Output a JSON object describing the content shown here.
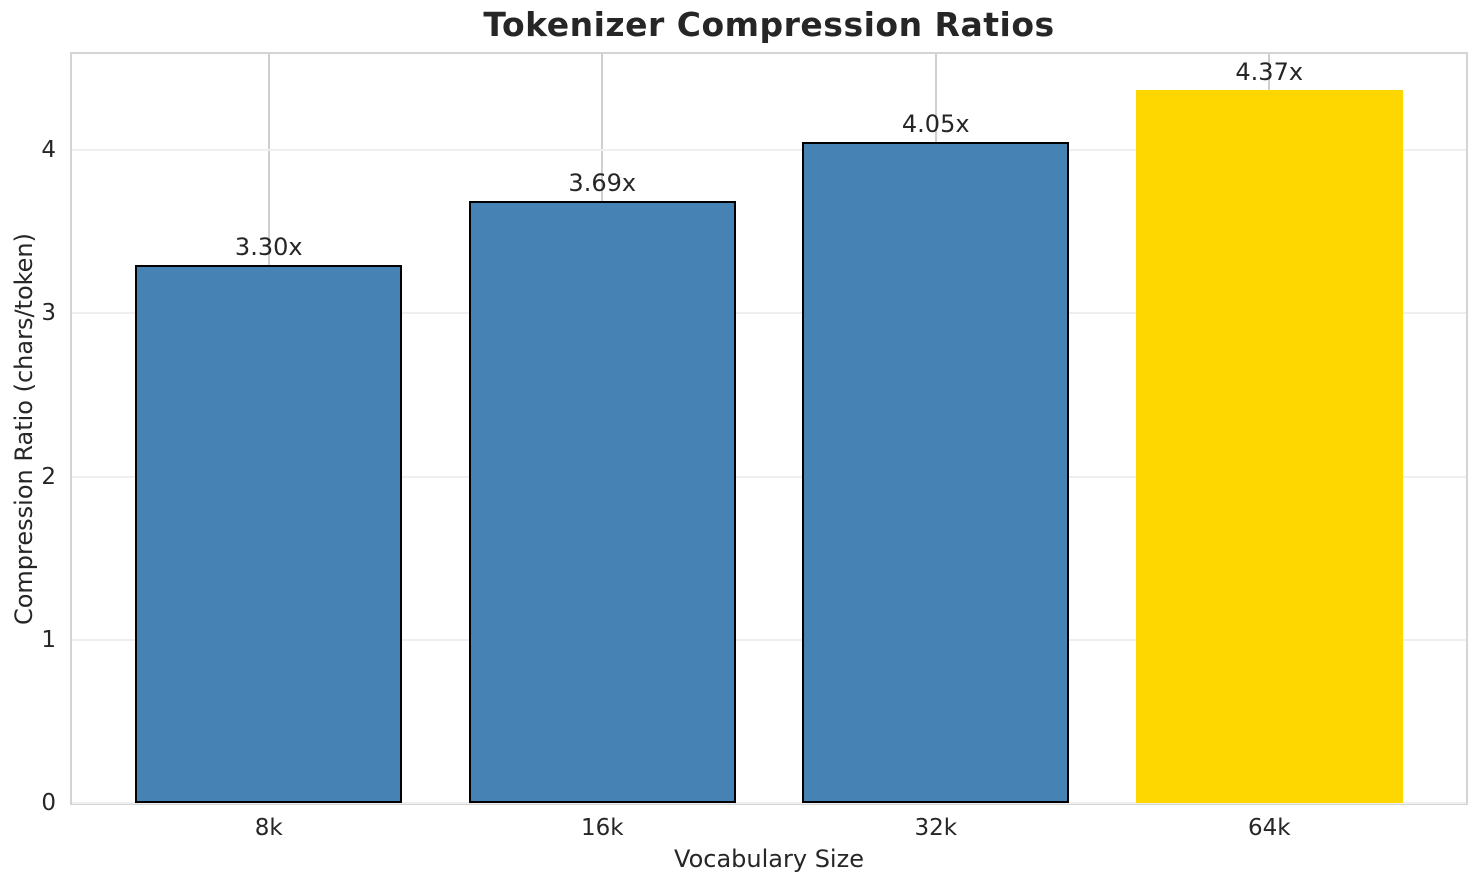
{
  "chart_data": {
    "type": "bar",
    "title": "Tokenizer Compression Ratios",
    "xlabel": "Vocabulary Size",
    "ylabel": "Compression Ratio (chars/token)",
    "categories": [
      "8k",
      "16k",
      "32k",
      "64k"
    ],
    "values": [
      3.3,
      3.69,
      4.05,
      4.37
    ],
    "value_labels": [
      "3.30x",
      "3.69x",
      "4.05x",
      "4.37x"
    ],
    "bar_colors": [
      "#4682B4",
      "#4682B4",
      "#4682B4",
      "#FFD700"
    ],
    "bar_edge_colors": [
      "#000000",
      "#000000",
      "#000000",
      "#FFD700"
    ],
    "highlighted_category": "64k",
    "yticks": [
      "0",
      "1",
      "2",
      "3",
      "4"
    ],
    "ylim": [
      0,
      4.59
    ],
    "xlim": [
      -0.59,
      3.59
    ],
    "bar_width": 0.8,
    "grid": "both",
    "legend": "none",
    "colors": {
      "bar_default": "#4682B4",
      "bar_highlight": "#FFD700",
      "bar_edge": "#000000",
      "grid_horizontal": "#efefef",
      "grid_vertical": "#cfcfcf",
      "spine": "#d4d4d4",
      "text": "#262626"
    }
  }
}
